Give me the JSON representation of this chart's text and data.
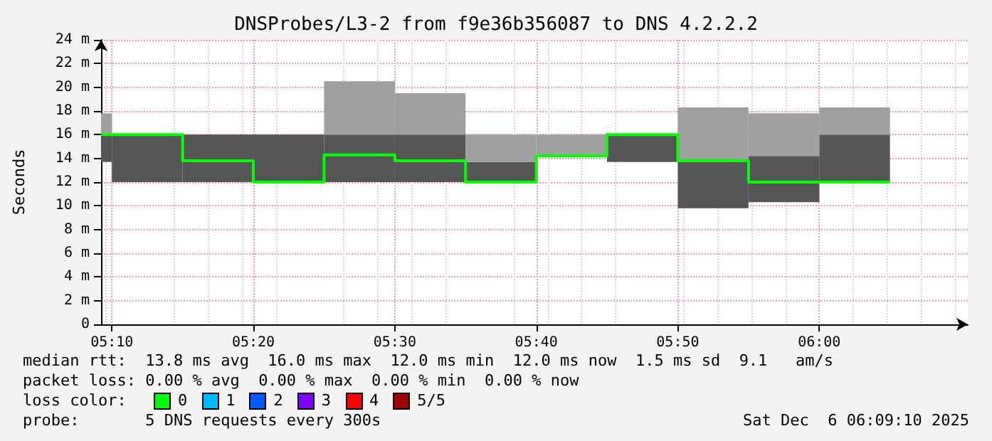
{
  "chart_data": {
    "type": "bar",
    "title": "DNSProbes/L3-2 from f9e36b356087 to DNS 4.2.2.2",
    "ylabel": "Seconds",
    "x": [
      5.1603,
      5.20833,
      5.29167,
      5.375,
      5.45833,
      5.54167,
      5.625,
      5.70833,
      5.79167,
      5.875,
      5.95833,
      6.04167
    ],
    "series": [
      {
        "color": "#555555",
        "base": [
          13.7,
          12,
          12,
          12,
          12,
          12,
          12,
          null,
          13.7,
          9.8,
          10.3,
          12
        ],
        "values": [
          2.3,
          4,
          4,
          4,
          4,
          4,
          1.7,
          null,
          2.3,
          3.9,
          3.9,
          4
        ]
      },
      {
        "color": "#a0a0a0",
        "base": [
          16,
          null,
          null,
          null,
          16,
          16,
          13.7,
          14.2,
          null,
          13.7,
          14.2,
          16
        ],
        "values": [
          1.8,
          null,
          null,
          null,
          4.5,
          3.5,
          2.3,
          1.8,
          null,
          4.6,
          3.6,
          2.3
        ]
      },
      {
        "type": "step",
        "color": "#00ff00",
        "x": [
          5.1539,
          5.1667,
          5.25,
          5.3333,
          5.4167,
          5.5,
          5.5833,
          5.6667,
          5.75,
          5.8333,
          5.9167,
          6.0,
          6.0833
        ],
        "values": [
          16,
          16,
          13.8,
          12,
          14.3,
          13.8,
          12,
          14.2,
          16,
          13.8,
          12,
          12,
          12
        ]
      }
    ],
    "xlim": [
      5.1539,
      6.175
    ],
    "xticks": [
      {
        "value": 5.1667,
        "label": "05:10"
      },
      {
        "value": 5.3333,
        "label": "05:20"
      },
      {
        "value": 5.5,
        "label": "05:30"
      },
      {
        "value": 5.6667,
        "label": "05:40"
      },
      {
        "value": 5.8333,
        "label": "05:50"
      },
      {
        "value": 6.0,
        "label": "06:00"
      }
    ],
    "ylim": [
      0,
      24
    ],
    "yticks": [
      0,
      {
        "value": 2,
        "label": "2 m"
      },
      {
        "value": 4,
        "label": "4 m"
      },
      {
        "value": 6,
        "label": "6 m"
      },
      {
        "value": 8,
        "label": "8 m"
      },
      {
        "value": 10,
        "label": "10 m"
      },
      {
        "value": 12,
        "label": "12 m"
      },
      {
        "value": 14,
        "label": "14 m"
      },
      {
        "value": 16,
        "label": "16 m"
      },
      {
        "value": 18,
        "label": "18 m"
      },
      {
        "value": 20,
        "label": "20 m"
      },
      {
        "value": 22,
        "label": "22 m"
      },
      {
        "value": 24,
        "label": "24 m"
      }
    ],
    "grid": true,
    "annotations": [
      "median rtt:  13.8 ms avg  16.0 ms max  12.0 ms min  12.0 ms now  1.5 ms sd  9.1   am/s",
      "packet loss: 0.00 % avg  0.00 % max  0.00 % min  0.00 % now",
      "loss color:",
      "0",
      "1",
      "2",
      "3",
      "4",
      "5/5",
      "probe:       5 DNS requests every 300s",
      "Sat Dec  6 06:09:10 2025"
    ]
  }
}
